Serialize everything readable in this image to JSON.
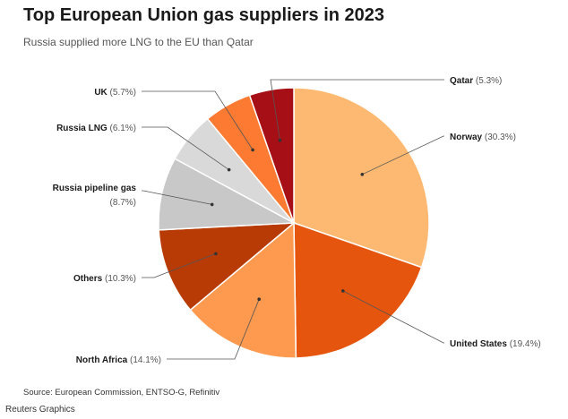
{
  "title": "Top European Union gas suppliers in 2023",
  "subtitle": "Russia supplied more LNG to the EU than Qatar",
  "source": "Source: European Commission, ENTSO-G, Refinitiv",
  "credit": "Reuters Graphics",
  "chart_data": {
    "type": "pie",
    "title": "Top European Union gas suppliers in 2023",
    "subtitle": "Russia supplied more LNG to the EU than Qatar",
    "unit": "%",
    "slices": [
      {
        "label": "Norway",
        "value": 30.3,
        "pct_label": "(30.3%)",
        "color": "#FDB971"
      },
      {
        "label": "United States",
        "value": 19.4,
        "pct_label": "(19.4%)",
        "color": "#E6550D"
      },
      {
        "label": "North Africa",
        "value": 14.1,
        "pct_label": "(14.1%)",
        "color": "#FD9A4F"
      },
      {
        "label": "Others",
        "value": 10.3,
        "pct_label": "(10.3%)",
        "color": "#B83A05"
      },
      {
        "label": "Russia pipeline gas",
        "value": 8.7,
        "pct_label": "(8.7%)",
        "color": "#C8C8C8"
      },
      {
        "label": "Russia LNG",
        "value": 6.1,
        "pct_label": "(6.1%)",
        "color": "#D9D9D9"
      },
      {
        "label": "UK",
        "value": 5.7,
        "pct_label": "(5.7%)",
        "color": "#FD7A32"
      },
      {
        "label": "Qatar",
        "value": 5.3,
        "pct_label": "(5.3%)",
        "color": "#A50F15"
      }
    ]
  }
}
